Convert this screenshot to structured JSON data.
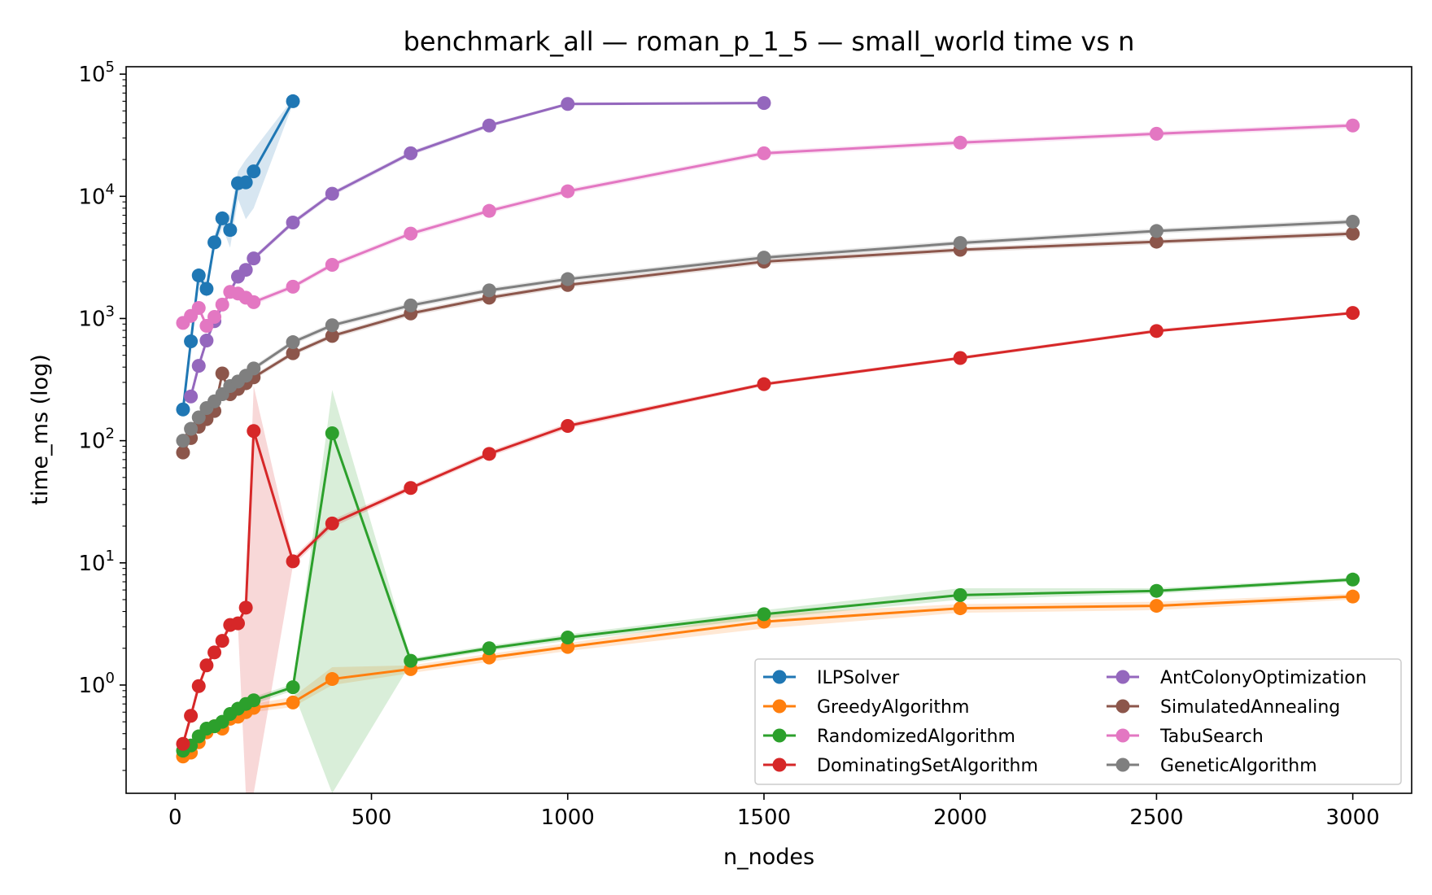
{
  "chart_data": {
    "type": "line",
    "title": "benchmark_all — roman_p_1_5 — small_world time vs n",
    "xlabel": "n_nodes",
    "ylabel": "time_ms (log)",
    "xlim": [
      -125,
      3150
    ],
    "ylim": [
      0.13,
      115000
    ],
    "y_scale": "log",
    "x_ticks": [
      0,
      500,
      1000,
      1500,
      2000,
      2500,
      3000
    ],
    "y_ticks": [
      {
        "value": 1,
        "base": "10",
        "exp": "0"
      },
      {
        "value": 10,
        "base": "10",
        "exp": "1"
      },
      {
        "value": 100,
        "base": "10",
        "exp": "2"
      },
      {
        "value": 1000,
        "base": "10",
        "exp": "3"
      },
      {
        "value": 10000,
        "base": "10",
        "exp": "4"
      },
      {
        "value": 100000,
        "base": "10",
        "exp": "5"
      }
    ],
    "grid": false,
    "legend_position": "bottom-right",
    "series": [
      {
        "name": "ILPSolver",
        "color": "#1f77b4",
        "x": [
          20,
          40,
          60,
          80,
          100,
          120,
          140,
          160,
          180,
          200,
          300
        ],
        "y": [
          180,
          650,
          2250,
          1750,
          4200,
          6600,
          5300,
          12800,
          13000,
          16000,
          60000
        ],
        "band_lo": [
          150,
          580,
          1900,
          1500,
          3600,
          5600,
          3800,
          9500,
          6500,
          8000,
          57000
        ],
        "band_hi": [
          210,
          720,
          2600,
          2000,
          4800,
          7600,
          7000,
          16000,
          20000,
          24000,
          63000
        ]
      },
      {
        "name": "GreedyAlgorithm",
        "color": "#ff7f0e",
        "x": [
          20,
          40,
          60,
          80,
          100,
          120,
          140,
          160,
          180,
          200,
          300,
          400,
          600,
          800,
          1000,
          1500,
          2000,
          2500,
          3000
        ],
        "y": [
          0.26,
          0.28,
          0.34,
          0.41,
          0.46,
          0.44,
          0.53,
          0.55,
          0.6,
          0.65,
          0.72,
          1.12,
          1.35,
          1.68,
          2.05,
          3.3,
          4.25,
          4.45,
          5.3
        ],
        "band_lo": [
          0.24,
          0.26,
          0.31,
          0.38,
          0.42,
          0.41,
          0.49,
          0.51,
          0.56,
          0.6,
          0.66,
          1.0,
          1.25,
          1.55,
          1.9,
          2.9,
          3.9,
          4.1,
          5.0
        ],
        "band_hi": [
          0.28,
          0.3,
          0.37,
          0.45,
          0.5,
          0.48,
          0.58,
          0.6,
          0.65,
          0.7,
          0.8,
          1.4,
          1.45,
          1.8,
          2.2,
          3.8,
          4.6,
          4.8,
          5.6
        ]
      },
      {
        "name": "RandomizedAlgorithm",
        "color": "#2ca02c",
        "x": [
          20,
          40,
          60,
          80,
          100,
          120,
          140,
          160,
          180,
          200,
          300,
          400,
          600,
          800,
          1000,
          1500,
          2000,
          2500,
          3000
        ],
        "y": [
          0.29,
          0.32,
          0.38,
          0.44,
          0.46,
          0.5,
          0.58,
          0.64,
          0.7,
          0.75,
          0.96,
          115,
          1.58,
          2.0,
          2.45,
          3.8,
          5.45,
          5.9,
          7.3
        ],
        "band_lo": [
          0.27,
          0.3,
          0.35,
          0.41,
          0.43,
          0.47,
          0.54,
          0.6,
          0.66,
          0.7,
          0.9,
          0.13,
          1.5,
          1.9,
          2.3,
          3.5,
          5.0,
          5.6,
          7.0
        ],
        "band_hi": [
          0.31,
          0.34,
          0.41,
          0.47,
          0.49,
          0.53,
          0.62,
          0.68,
          0.74,
          0.8,
          1.02,
          260,
          1.66,
          2.1,
          2.6,
          4.1,
          6.2,
          6.2,
          7.6
        ]
      },
      {
        "name": "DominatingSetAlgorithm",
        "color": "#d62728",
        "x": [
          20,
          40,
          60,
          80,
          100,
          120,
          140,
          160,
          180,
          200,
          300,
          400,
          600,
          800,
          1000,
          1500,
          2000,
          2500,
          3000
        ],
        "y": [
          0.33,
          0.56,
          0.98,
          1.45,
          1.85,
          2.3,
          3.1,
          3.2,
          4.3,
          120,
          10.3,
          21,
          41,
          78,
          132,
          290,
          475,
          790,
          1110
        ],
        "band_lo": [
          0.31,
          0.52,
          0.92,
          1.36,
          1.75,
          2.15,
          2.9,
          3.0,
          0.13,
          0.13,
          9.5,
          19.5,
          39,
          74,
          125,
          280,
          460,
          770,
          1080
        ],
        "band_hi": [
          0.35,
          0.6,
          1.04,
          1.54,
          1.95,
          2.45,
          3.3,
          3.4,
          4.6,
          280,
          11.1,
          22.5,
          43,
          82,
          139,
          300,
          490,
          820,
          1140
        ]
      },
      {
        "name": "AntColonyOptimization",
        "color": "#9467bd",
        "x": [
          40,
          60,
          80,
          100,
          160,
          180,
          200,
          300,
          400,
          600,
          800,
          1000,
          1500
        ],
        "y": [
          230,
          410,
          660,
          950,
          2200,
          2500,
          3100,
          6100,
          10500,
          22500,
          38000,
          57000,
          58000
        ],
        "band_lo": [
          215,
          385,
          620,
          900,
          2080,
          2380,
          2950,
          5800,
          10000,
          21500,
          36500,
          55500,
          56500
        ],
        "band_hi": [
          245,
          435,
          700,
          1000,
          2320,
          2620,
          3250,
          6400,
          11000,
          23500,
          39500,
          58500,
          59500
        ]
      },
      {
        "name": "SimulatedAnnealing",
        "color": "#8c564b",
        "x": [
          20,
          40,
          60,
          80,
          100,
          120,
          140,
          160,
          180,
          200,
          300,
          400,
          600,
          800,
          1000,
          1500,
          2000,
          2500,
          3000
        ],
        "y": [
          80,
          105,
          130,
          150,
          175,
          355,
          240,
          265,
          295,
          330,
          520,
          720,
          1100,
          1480,
          1880,
          2920,
          3650,
          4250,
          4950
        ],
        "band_lo": [
          76,
          100,
          124,
          143,
          167,
          330,
          228,
          252,
          280,
          314,
          495,
          685,
          1045,
          1405,
          1785,
          2775,
          3470,
          4040,
          4700
        ],
        "band_hi": [
          84,
          110,
          136,
          157,
          183,
          380,
          252,
          278,
          310,
          346,
          545,
          755,
          1155,
          1555,
          1975,
          3065,
          3830,
          4460,
          5200
        ]
      },
      {
        "name": "TabuSearch",
        "color": "#e377c2",
        "x": [
          20,
          40,
          60,
          80,
          100,
          120,
          140,
          160,
          180,
          200,
          300,
          400,
          600,
          800,
          1000,
          1500,
          2000,
          2500,
          3000
        ],
        "y": [
          920,
          1050,
          1220,
          870,
          1030,
          1300,
          1650,
          1600,
          1480,
          1360,
          1820,
          2750,
          4950,
          7600,
          11000,
          22500,
          27500,
          32500,
          38000
        ],
        "band_lo": [
          875,
          1000,
          1160,
          830,
          980,
          1235,
          1570,
          1520,
          1405,
          1290,
          1730,
          2610,
          4700,
          7220,
          10450,
          21400,
          26100,
          30900,
          36100
        ],
        "band_hi": [
          965,
          1100,
          1280,
          910,
          1080,
          1365,
          1730,
          1680,
          1555,
          1430,
          1910,
          2890,
          5200,
          7980,
          11550,
          23600,
          28900,
          34100,
          39900
        ]
      },
      {
        "name": "GeneticAlgorithm",
        "color": "#7f7f7f",
        "x": [
          20,
          40,
          60,
          80,
          100,
          120,
          140,
          160,
          180,
          200,
          300,
          400,
          600,
          800,
          1000,
          1500,
          2000,
          2500,
          3000
        ],
        "y": [
          100,
          125,
          155,
          185,
          210,
          240,
          280,
          305,
          340,
          390,
          640,
          880,
          1280,
          1700,
          2100,
          3150,
          4150,
          5200,
          6200
        ],
        "band_lo": [
          95,
          119,
          147,
          176,
          200,
          228,
          266,
          290,
          323,
          370,
          608,
          836,
          1216,
          1615,
          1995,
          2990,
          3940,
          4940,
          5890
        ],
        "band_hi": [
          105,
          131,
          163,
          194,
          220,
          252,
          294,
          320,
          357,
          410,
          672,
          924,
          1344,
          1785,
          2205,
          3310,
          4360,
          5460,
          6510
        ]
      }
    ]
  }
}
